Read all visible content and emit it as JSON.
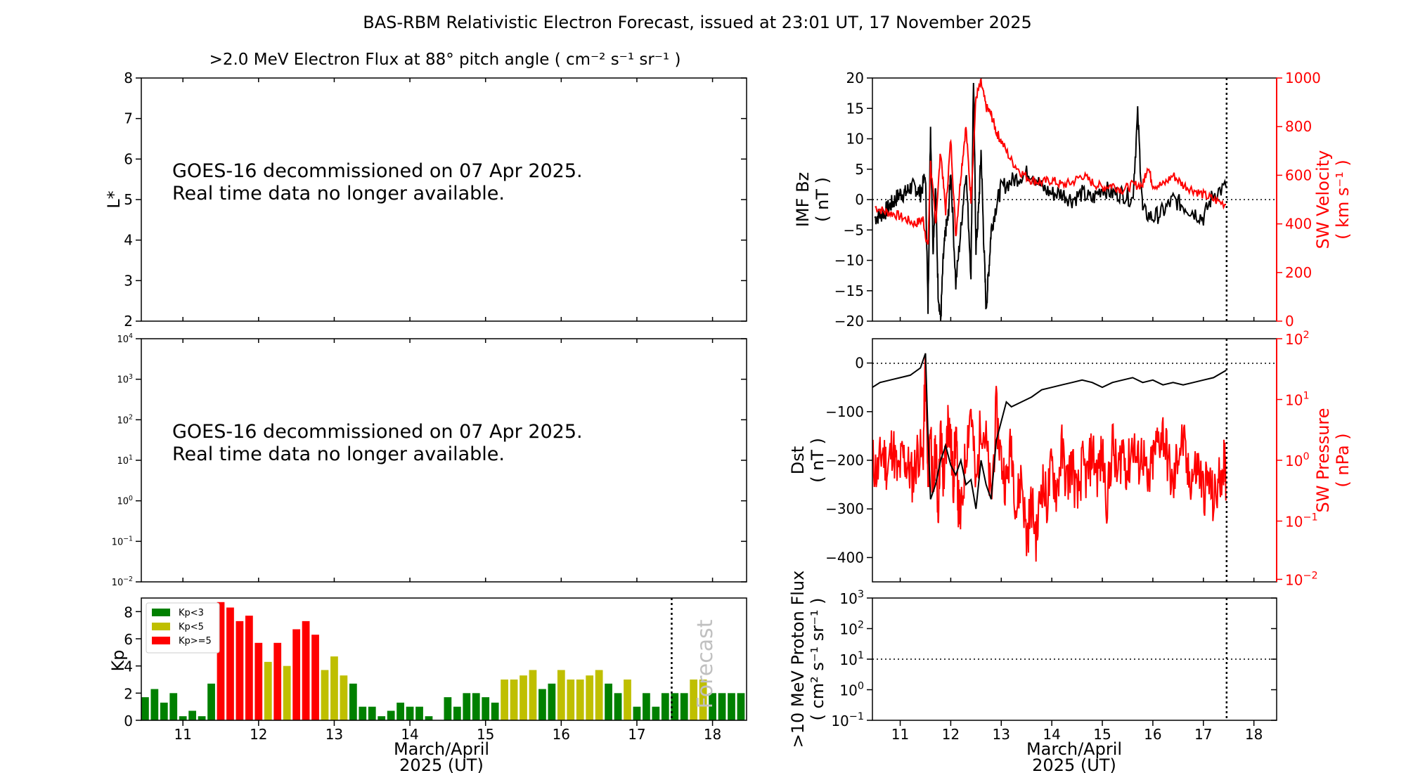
{
  "figure": {
    "title": "BAS-RBM Relativistic Electron Forecast, issued at 23:01 UT, 17 November 2025"
  },
  "chart_data": [
    {
      "id": "lstar-panel",
      "type": "heatmap",
      "title": ">2.0 MeV Electron Flux at 88° pitch angle ( cm⁻² s⁻¹ sr⁻¹ )",
      "ylabel": "L*",
      "ylim": [
        2,
        8
      ],
      "yticks": [
        "2",
        "3",
        "4",
        "5",
        "6",
        "7",
        "8"
      ],
      "message_lines": [
        "GOES-16 decommissioned on 07 Apr 2025.",
        "Real time data no longer available."
      ]
    },
    {
      "id": "flux-panel",
      "type": "line",
      "y_scale": "log",
      "ylim": [
        0.01,
        10000
      ],
      "yticks": [
        {
          "base": "10",
          "exp": "4"
        },
        {
          "base": "10",
          "exp": "3"
        },
        {
          "base": "10",
          "exp": "2"
        },
        {
          "base": "10",
          "exp": "1"
        },
        {
          "base": "10",
          "exp": "0"
        },
        {
          "base": "10",
          "exp": "−1"
        },
        {
          "base": "10",
          "exp": "−2"
        }
      ],
      "message_lines": [
        "GOES-16 decommissioned on 07 Apr 2025.",
        "Real time data no longer available."
      ]
    },
    {
      "id": "kp-panel",
      "type": "bar",
      "ylabel": "Kp",
      "xlabel_lines": [
        "March/April",
        "2025 (UT)"
      ],
      "xlim": [
        10.45,
        18.45
      ],
      "ylim": [
        0,
        9
      ],
      "yticks": [
        "0",
        "2",
        "4",
        "6",
        "8"
      ],
      "xticks": [
        "11",
        "12",
        "13",
        "14",
        "15",
        "16",
        "17",
        "18"
      ],
      "forecast_label": "Forecast",
      "forecast_line_x": 17.46,
      "legend": [
        {
          "label": "Kp<3",
          "color": "#008000"
        },
        {
          "label": "Kp<5",
          "color": "#bfbf00"
        },
        {
          "label": "Kp>=5",
          "color": "#ff0000"
        }
      ],
      "colors": {
        "low": "#008000",
        "mid": "#bfbf00",
        "high": "#ff0000"
      },
      "bar_width_days": 0.1,
      "x": [
        10.5,
        10.625,
        10.75,
        10.875,
        11.0,
        11.125,
        11.25,
        11.375,
        11.5,
        11.625,
        11.75,
        11.875,
        12.0,
        12.125,
        12.25,
        12.375,
        12.5,
        12.625,
        12.75,
        12.875,
        13.0,
        13.125,
        13.25,
        13.375,
        13.5,
        13.625,
        13.75,
        13.875,
        14.0,
        14.125,
        14.25,
        14.375,
        14.5,
        14.625,
        14.75,
        14.875,
        15.0,
        15.125,
        15.25,
        15.375,
        15.5,
        15.625,
        15.75,
        15.875,
        16.0,
        16.125,
        16.25,
        16.375,
        16.5,
        16.625,
        16.75,
        16.875,
        17.0,
        17.125,
        17.25,
        17.375,
        17.5,
        17.625,
        17.75,
        17.875,
        18.0,
        18.125,
        18.25,
        18.375
      ],
      "values": [
        1.7,
        2.3,
        1.3,
        2.0,
        0.3,
        0.7,
        0.3,
        2.7,
        8.7,
        8.3,
        7.3,
        7.7,
        5.7,
        4.3,
        5.7,
        4.0,
        6.7,
        7.3,
        6.3,
        3.7,
        4.7,
        3.3,
        2.7,
        1.0,
        1.0,
        0.3,
        0.7,
        1.3,
        1.0,
        1.0,
        0.3,
        0.0,
        1.7,
        1.0,
        2.0,
        2.0,
        1.7,
        1.3,
        3.0,
        3.0,
        3.3,
        3.7,
        2.3,
        2.7,
        3.7,
        3.0,
        3.0,
        3.3,
        3.7,
        2.7,
        2.0,
        3.0,
        1.0,
        2.0,
        1.0,
        2.0,
        2.0,
        2.0,
        3.0,
        3.0,
        2.0,
        2.0,
        2.0,
        2.0
      ]
    },
    {
      "id": "imf-panel",
      "type": "line",
      "ylabel_lines": [
        "IMF Bz",
        "( nT )"
      ],
      "ylim": [
        -20,
        20
      ],
      "yticks": [
        "−20",
        "−15",
        "−10",
        "−5",
        "0",
        "5",
        "10",
        "15",
        "20"
      ],
      "y2label_lines": [
        "SW Velocity",
        "( km s⁻¹ )"
      ],
      "y2lim": [
        0,
        1000
      ],
      "y2ticks": [
        "0",
        "200",
        "400",
        "600",
        "800",
        "1000"
      ],
      "xlim": [
        10.45,
        18.45
      ],
      "xticks": [
        "11",
        "12",
        "13",
        "14",
        "15",
        "16",
        "17",
        "18"
      ],
      "now_line_x": 17.46,
      "series": [
        {
          "color": "#000000",
          "x": [
            10.5,
            10.6,
            10.7,
            10.8,
            10.9,
            11.0,
            11.1,
            11.2,
            11.3,
            11.4,
            11.5,
            11.55,
            11.6,
            11.65,
            11.7,
            11.75,
            11.8,
            11.85,
            11.9,
            11.95,
            12.0,
            12.1,
            12.2,
            12.3,
            12.4,
            12.45,
            12.5,
            12.55,
            12.6,
            12.65,
            12.7,
            12.75,
            12.8,
            12.9,
            13.0,
            13.2,
            13.4,
            13.6,
            13.8,
            14.0,
            14.2,
            14.4,
            14.6,
            14.8,
            15.0,
            15.2,
            15.4,
            15.6,
            15.7,
            15.8,
            16.0,
            16.2,
            16.4,
            16.6,
            16.8,
            17.0,
            17.2,
            17.45
          ],
          "y": [
            -3,
            -2.5,
            -2,
            -1,
            0,
            1,
            1,
            2,
            2,
            1,
            4,
            -18,
            12,
            -8,
            2,
            -15,
            -20,
            -10,
            -5,
            -3,
            5,
            -14,
            -5,
            5,
            -12,
            20,
            -8,
            -2,
            8,
            -6,
            -18,
            -12,
            -5,
            -1,
            2,
            3,
            4,
            4.5,
            2,
            1,
            1,
            0,
            1,
            0,
            2,
            1,
            1,
            0,
            14,
            -2,
            -3,
            -2,
            0,
            -1,
            -2,
            -3,
            1,
            2
          ]
        },
        {
          "color": "#ff0000",
          "axis": "y2",
          "x": [
            10.5,
            10.7,
            10.9,
            11.1,
            11.3,
            11.45,
            11.55,
            11.6,
            11.7,
            11.8,
            11.9,
            12.0,
            12.1,
            12.2,
            12.3,
            12.4,
            12.5,
            12.6,
            12.7,
            12.8,
            12.9,
            13.0,
            13.2,
            13.4,
            13.6,
            13.8,
            14.0,
            14.2,
            14.4,
            14.6,
            14.8,
            15.0,
            15.2,
            15.4,
            15.6,
            15.8,
            15.9,
            16.0,
            16.2,
            16.4,
            16.6,
            16.8,
            17.0,
            17.2,
            17.45
          ],
          "y": [
            470,
            450,
            440,
            420,
            400,
            420,
            300,
            650,
            400,
            700,
            450,
            750,
            350,
            600,
            800,
            500,
            920,
            980,
            880,
            850,
            780,
            740,
            660,
            610,
            580,
            570,
            580,
            560,
            570,
            600,
            570,
            550,
            560,
            540,
            560,
            560,
            640,
            560,
            560,
            600,
            560,
            540,
            520,
            500,
            480
          ]
        }
      ]
    },
    {
      "id": "dst-panel",
      "type": "line",
      "ylabel_lines": [
        "Dst",
        "( nT )"
      ],
      "ylim": [
        -450,
        50
      ],
      "yticks": [
        "−400",
        "−300",
        "−200",
        "−100",
        "0"
      ],
      "y2scale": "log",
      "y2label_lines": [
        "SW Pressure",
        "( nPa )"
      ],
      "y2lim": [
        0.01,
        100
      ],
      "y2ticks": [
        {
          "base": "10",
          "exp": "−2"
        },
        {
          "base": "10",
          "exp": "−1"
        },
        {
          "base": "10",
          "exp": "0"
        },
        {
          "base": "10",
          "exp": "1"
        },
        {
          "base": "10",
          "exp": "2"
        }
      ],
      "xlim": [
        10.45,
        18.45
      ],
      "now_line_x": 17.46,
      "series": [
        {
          "color": "#000000",
          "x": [
            10.45,
            10.6,
            10.8,
            11.0,
            11.2,
            11.4,
            11.5,
            11.55,
            11.6,
            11.7,
            11.8,
            11.9,
            12.0,
            12.1,
            12.2,
            12.3,
            12.4,
            12.5,
            12.6,
            12.7,
            12.8,
            12.9,
            13.0,
            13.1,
            13.2,
            13.4,
            13.6,
            13.8,
            14.0,
            14.2,
            14.4,
            14.6,
            14.8,
            15.0,
            15.2,
            15.4,
            15.6,
            15.8,
            16.0,
            16.2,
            16.4,
            16.6,
            16.8,
            17.0,
            17.2,
            17.45
          ],
          "y": [
            -50,
            -40,
            -35,
            -30,
            -25,
            -10,
            20,
            -150,
            -280,
            -250,
            -200,
            -170,
            -210,
            -230,
            -200,
            -250,
            -240,
            -300,
            -200,
            -250,
            -280,
            -160,
            -120,
            -80,
            -90,
            -80,
            -70,
            -55,
            -50,
            -45,
            -40,
            -35,
            -40,
            -50,
            -40,
            -35,
            -30,
            -40,
            -35,
            -45,
            -40,
            -45,
            -40,
            -35,
            -30,
            -15
          ]
        },
        {
          "color": "#ff0000",
          "axis": "y2",
          "x": [
            10.45,
            10.55,
            10.65,
            10.75,
            10.85,
            10.95,
            11.05,
            11.15,
            11.25,
            11.35,
            11.45,
            11.5,
            11.55,
            11.6,
            11.65,
            11.7,
            11.75,
            11.8,
            11.85,
            11.9,
            11.95,
            12.0,
            12.05,
            12.1,
            12.15,
            12.2,
            12.3,
            12.4,
            12.5,
            12.6,
            12.7,
            12.8,
            12.9,
            13.0,
            13.1,
            13.2,
            13.3,
            13.4,
            13.5,
            13.6,
            13.7,
            13.8,
            13.9,
            14.0,
            14.1,
            14.2,
            14.3,
            14.4,
            14.5,
            14.6,
            14.7,
            14.8,
            14.9,
            15.0,
            15.1,
            15.2,
            15.3,
            15.4,
            15.5,
            15.6,
            15.7,
            15.8,
            15.9,
            16.0,
            16.1,
            16.2,
            16.3,
            16.4,
            16.5,
            16.6,
            16.7,
            16.8,
            16.9,
            17.0,
            17.1,
            17.2,
            17.3,
            17.4,
            17.45
          ],
          "y": [
            1.0,
            0.6,
            1.5,
            0.7,
            2.0,
            0.5,
            1.2,
            0.8,
            0.5,
            1.5,
            1.0,
            40,
            0.3,
            5,
            0.2,
            2,
            0.15,
            3,
            0.5,
            1,
            6,
            2,
            0.4,
            3,
            0.2,
            0.1,
            1.5,
            8,
            0.3,
            5,
            2,
            0.2,
            6,
            1,
            0.4,
            2,
            0.15,
            0.6,
            0.05,
            0.2,
            0.05,
            0.5,
            0.2,
            0.8,
            0.3,
            1.5,
            0.4,
            1.0,
            0.2,
            0.8,
            0.5,
            1.5,
            0.6,
            1.2,
            0.2,
            2,
            0.5,
            1.8,
            0.6,
            2.2,
            0.8,
            1.5,
            0.3,
            1,
            2,
            3,
            1,
            0.3,
            1.5,
            2,
            0.5,
            0.6,
            0.8,
            0.3,
            0.5,
            0.2,
            0.4,
            1.0,
            0.5
          ]
        }
      ]
    },
    {
      "id": "proton-panel",
      "type": "line",
      "ylabel_lines": [
        ">10 MeV Proton Flux",
        "( cm² s⁻¹ sr⁻¹ )"
      ],
      "y_scale": "log",
      "ylim": [
        0.1,
        1000
      ],
      "yticks": [
        {
          "base": "10",
          "exp": "−1"
        },
        {
          "base": "10",
          "exp": "0"
        },
        {
          "base": "10",
          "exp": "1"
        },
        {
          "base": "10",
          "exp": "2"
        },
        {
          "base": "10",
          "exp": "3"
        }
      ],
      "xlim": [
        10.45,
        18.45
      ],
      "xticks": [
        "11",
        "12",
        "13",
        "14",
        "15",
        "16",
        "17",
        "18"
      ],
      "xlabel_lines": [
        "March/April",
        "2025 (UT)"
      ],
      "threshold": 10,
      "now_line_x": 17.46
    }
  ]
}
